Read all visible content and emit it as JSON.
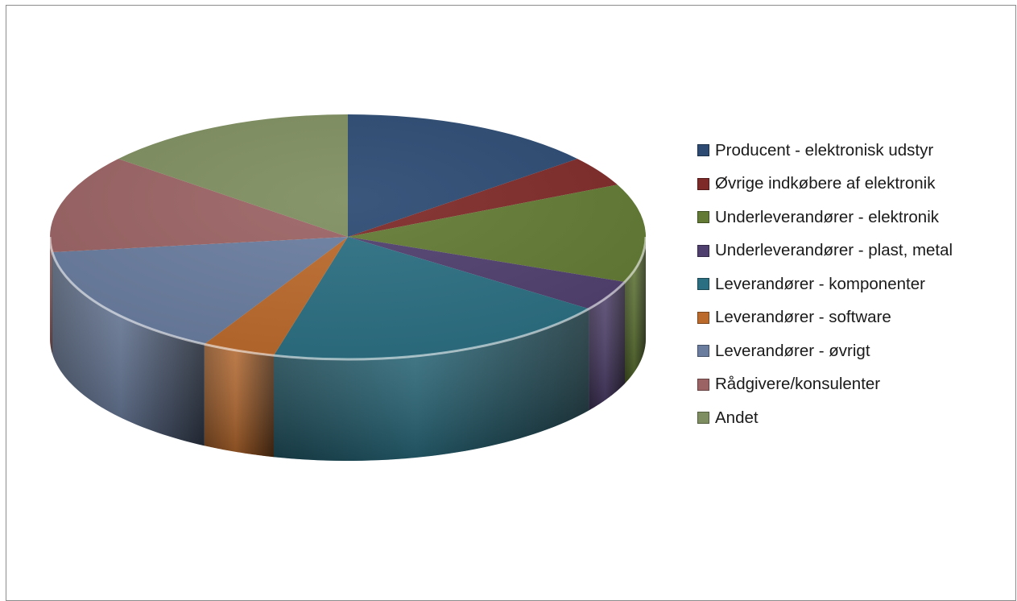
{
  "chart_data": {
    "type": "pie",
    "title": "",
    "legend_position": "right",
    "series": [
      {
        "label": "Producent - elektronisk udstyr",
        "value": 14,
        "color": "#2c4a72"
      },
      {
        "label": "Øvrige indkøbere af elektronik",
        "value": 4,
        "color": "#7e2a28"
      },
      {
        "label": "Underleverandører - elektronik",
        "value": 13,
        "color": "#627a33"
      },
      {
        "label": "Underleverandører - plast, metal",
        "value": 4,
        "color": "#4f3f6e"
      },
      {
        "label": "Leverandører - komponenter",
        "value": 19,
        "color": "#2b6f82"
      },
      {
        "label": "Leverandører - software",
        "value": 4,
        "color": "#bb6a2c"
      },
      {
        "label": "Leverandører - øvrigt",
        "value": 15,
        "color": "#6a7d9f"
      },
      {
        "label": "Rådgivere/konsulenter",
        "value": 13,
        "color": "#9b6364"
      },
      {
        "label": "Andet",
        "value": 14,
        "color": "#7f8e60"
      }
    ]
  }
}
